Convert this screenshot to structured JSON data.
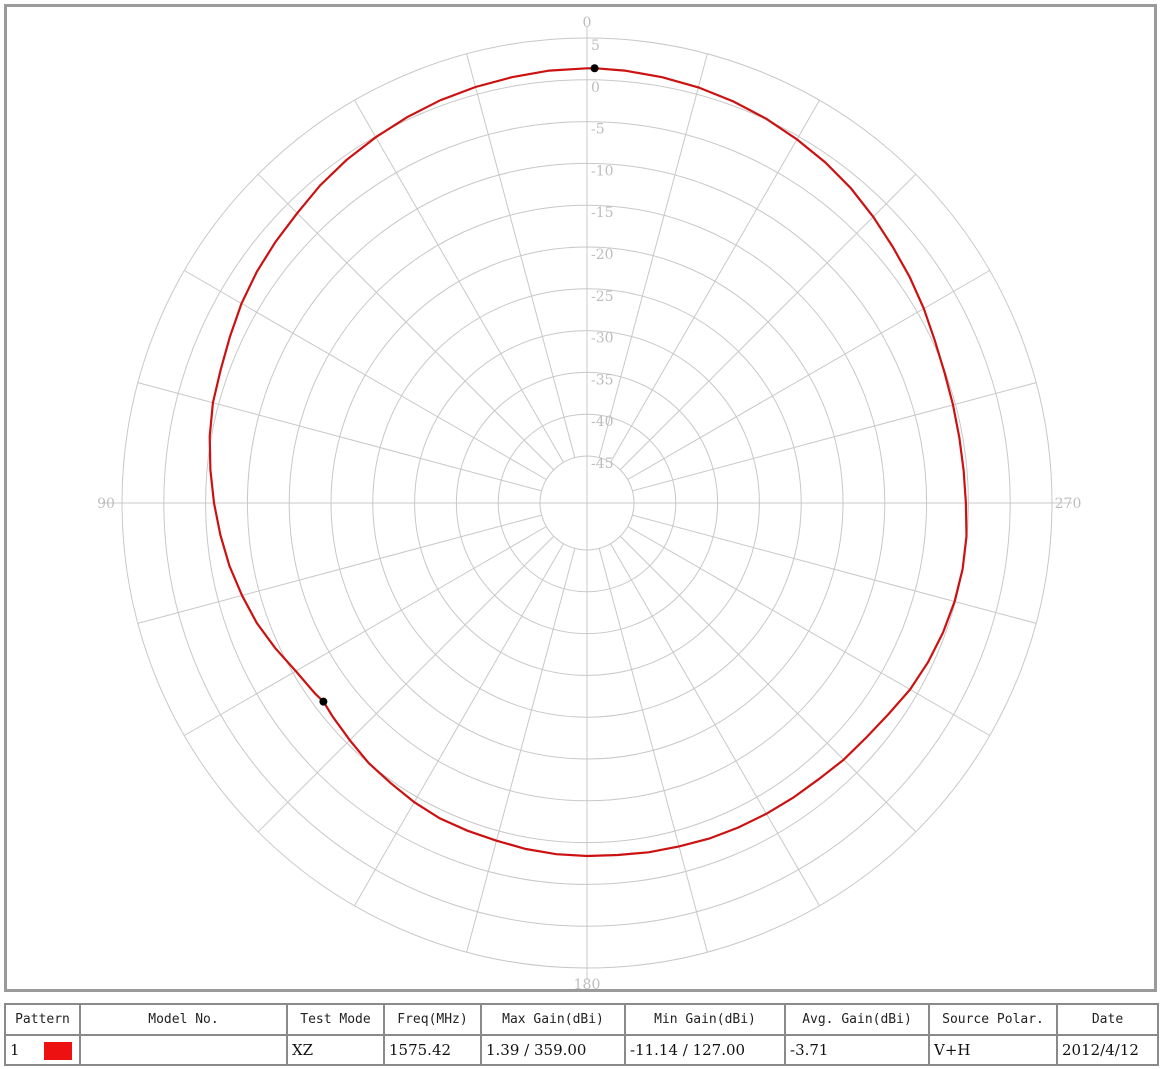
{
  "chart_data": {
    "type": "polar",
    "series": [
      {
        "color": "#cc1111",
        "r_min": -45,
        "points": [
          [
            0,
            1.38
          ],
          [
            5,
            1.3
          ],
          [
            10,
            1.1
          ],
          [
            15,
            0.9
          ],
          [
            20,
            0.65
          ],
          [
            25,
            0.3
          ],
          [
            30,
            -0.1
          ],
          [
            35,
            -0.5
          ],
          [
            40,
            -1.0
          ],
          [
            45,
            -1.6
          ],
          [
            50,
            -2.0
          ],
          [
            55,
            -2.4
          ],
          [
            60,
            -2.9
          ],
          [
            65,
            -3.5
          ],
          [
            70,
            -4.0
          ],
          [
            75,
            -4.3
          ],
          [
            80,
            -4.8
          ],
          [
            85,
            -5.4
          ],
          [
            90,
            -6.0
          ],
          [
            95,
            -6.6
          ],
          [
            100,
            -7.2
          ],
          [
            105,
            -7.9
          ],
          [
            110,
            -8.6
          ],
          [
            115,
            -9.5
          ],
          [
            120,
            -10.4
          ],
          [
            125,
            -10.9
          ],
          [
            127,
            -11.14
          ],
          [
            130,
            -10.9
          ],
          [
            135,
            -10.5
          ],
          [
            140,
            -10.0
          ],
          [
            145,
            -9.7
          ],
          [
            150,
            -9.3
          ],
          [
            155,
            -9.0
          ],
          [
            160,
            -8.9
          ],
          [
            165,
            -8.8
          ],
          [
            170,
            -8.6
          ],
          [
            175,
            -8.45
          ],
          [
            180,
            -8.4
          ],
          [
            185,
            -8.35
          ],
          [
            190,
            -8.2
          ],
          [
            195,
            -8.1
          ],
          [
            200,
            -7.9
          ],
          [
            205,
            -7.8
          ],
          [
            210,
            -7.7
          ],
          [
            215,
            -7.6
          ],
          [
            220,
            -7.5
          ],
          [
            225,
            -7.2
          ],
          [
            230,
            -7.0
          ],
          [
            235,
            -6.6
          ],
          [
            240,
            -6.0
          ],
          [
            245,
            -5.6
          ],
          [
            250,
            -5.3
          ],
          [
            255,
            -5.1
          ],
          [
            260,
            -5.0
          ],
          [
            265,
            -5.05
          ],
          [
            270,
            -5.3
          ],
          [
            275,
            -5.4
          ],
          [
            280,
            -5.4
          ],
          [
            285,
            -5.3
          ],
          [
            290,
            -5.1
          ],
          [
            295,
            -4.7
          ],
          [
            300,
            -4.1
          ],
          [
            305,
            -3.5
          ],
          [
            310,
            -2.9
          ],
          [
            315,
            -2.2
          ],
          [
            320,
            -1.5
          ],
          [
            325,
            -0.9
          ],
          [
            330,
            -0.4
          ],
          [
            335,
            0.1
          ],
          [
            340,
            0.5
          ],
          [
            345,
            0.85
          ],
          [
            350,
            1.1
          ],
          [
            355,
            1.3
          ],
          [
            359,
            1.39
          ]
        ]
      }
    ],
    "markers": [
      {
        "angle": 359,
        "gain": 1.39
      },
      {
        "angle": 127,
        "gain": -11.14
      }
    ],
    "radial_ticks": [
      "5",
      "0",
      "-5",
      "-10",
      "-15",
      "-20",
      "-25",
      "-30",
      "-35",
      "-40",
      "-45"
    ],
    "radial_tick_values": [
      5,
      0,
      -5,
      -10,
      -15,
      -20,
      -25,
      -30,
      -35,
      -40,
      -45
    ],
    "angle_labels": [
      {
        "angle": 0,
        "text": "0"
      },
      {
        "angle": 90,
        "text": "90"
      },
      {
        "angle": 180,
        "text": "180"
      },
      {
        "angle": 270,
        "text": "270"
      }
    ],
    "spoke_step_deg": 15,
    "r_range": [
      -45,
      5
    ],
    "grid": true
  },
  "table": {
    "headers": [
      "Pattern",
      "Model No.",
      "Test Mode",
      "Freq(MHz)",
      "Max Gain(dBi)",
      "Min Gain(dBi)",
      "Avg. Gain(dBi)",
      "Source Polar.",
      "Date"
    ],
    "row": {
      "pattern": "1",
      "swatch_color": "#ee1111",
      "model_no": "",
      "test_mode": "XZ",
      "freq": "1575.42",
      "max_gain": "1.39 / 359.00",
      "min_gain": "-11.14 / 127.00",
      "avg_gain": "-3.71",
      "source_polar": "V+H",
      "date": "2012/4/12"
    }
  }
}
